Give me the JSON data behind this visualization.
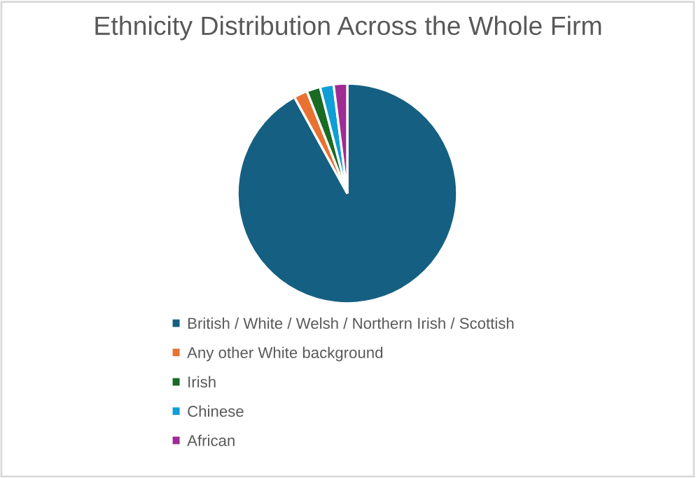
{
  "chart_data": {
    "type": "pie",
    "title": "Ethnicity Distribution Across the Whole Firm",
    "categories": [
      "British / White / Welsh / Northern Irish / Scottish",
      "Any other White background",
      "Irish",
      "Chinese",
      "African"
    ],
    "values": [
      92,
      2,
      2,
      2,
      2
    ],
    "colors": [
      "#156082",
      "#e97132",
      "#196b24",
      "#0f9ed5",
      "#a02b93"
    ],
    "legend": "bottom"
  }
}
